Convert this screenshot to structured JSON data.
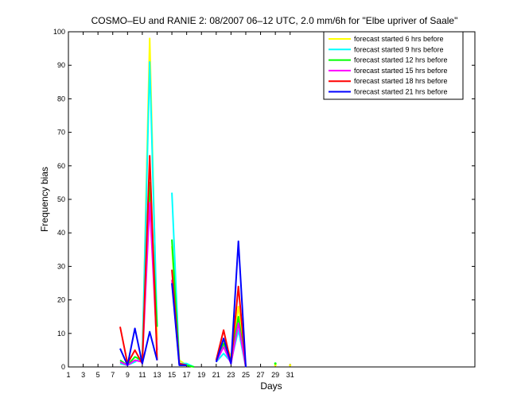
{
  "chart_data": {
    "type": "line",
    "title": "COSMO–EU and RANIE 2: 08/2007 06–12 UTC, 2.0 mm/6h for \"Elbe upriver of Saale\"",
    "xlabel": "Days",
    "ylabel": "Frequency bias",
    "xlim": [
      1,
      56
    ],
    "ylim": [
      0,
      100
    ],
    "xticks": [
      1,
      3,
      5,
      7,
      9,
      11,
      13,
      15,
      17,
      19,
      21,
      23,
      25,
      27,
      29,
      31
    ],
    "yticks": [
      0,
      10,
      20,
      30,
      40,
      50,
      60,
      70,
      80,
      90,
      100
    ],
    "grid": false,
    "legend_position": "top-right",
    "series": [
      {
        "name": "forecast started 6 hrs before",
        "color": "#ffff00",
        "x": [
          8,
          9,
          10,
          11,
          12,
          13,
          15,
          16,
          17,
          18,
          21,
          22,
          23,
          24,
          25,
          29,
          31
        ],
        "y": [
          1,
          0.5,
          2,
          2,
          98,
          8,
          36,
          2,
          0.5,
          0,
          2,
          8,
          3,
          18,
          0,
          0.5,
          0.5
        ]
      },
      {
        "name": "forecast started 9 hrs before",
        "color": "#00ffff",
        "x": [
          8,
          9,
          10,
          11,
          12,
          13,
          15,
          16,
          17,
          18,
          21,
          22,
          23,
          24,
          25
        ],
        "y": [
          1,
          0.5,
          1.5,
          3,
          91,
          12,
          52,
          1,
          1,
          0,
          1.5,
          4,
          1.5,
          11,
          0
        ]
      },
      {
        "name": "forecast started 12 hrs before",
        "color": "#00ff00",
        "x": [
          8,
          9,
          10,
          11,
          12,
          13,
          15,
          16,
          17,
          18,
          21,
          22,
          23,
          24,
          25,
          29
        ],
        "y": [
          2,
          0.5,
          3,
          2,
          55,
          12,
          38,
          1,
          0.5,
          0,
          2,
          7,
          2,
          15,
          0,
          1
        ]
      },
      {
        "name": "forecast started 15 hrs before",
        "color": "#ff00ff",
        "x": [
          8,
          9,
          10,
          11,
          12,
          13,
          15,
          16,
          17,
          21,
          22,
          23,
          24,
          25
        ],
        "y": [
          1.5,
          0.5,
          2,
          1.5,
          49,
          5,
          26,
          1,
          0.5,
          1.5,
          6,
          1,
          13,
          0
        ]
      },
      {
        "name": "forecast started 18 hrs before",
        "color": "#ff0000",
        "x": [
          8,
          9,
          10,
          11,
          12,
          13,
          15,
          16,
          17,
          21,
          22,
          23,
          24,
          25
        ],
        "y": [
          12,
          1,
          5,
          1,
          63,
          2,
          29,
          1,
          0.5,
          2,
          11,
          1,
          24,
          0
        ]
      },
      {
        "name": "forecast started 21 hrs before",
        "color": "#0000ff",
        "x": [
          8,
          9,
          10,
          11,
          12,
          13,
          15,
          16,
          17,
          21,
          22,
          23,
          24,
          25
        ],
        "y": [
          5.5,
          0.5,
          11.5,
          1,
          10.5,
          2,
          25,
          0.5,
          0.5,
          1.5,
          8.5,
          1,
          37.5,
          0
        ]
      }
    ]
  }
}
